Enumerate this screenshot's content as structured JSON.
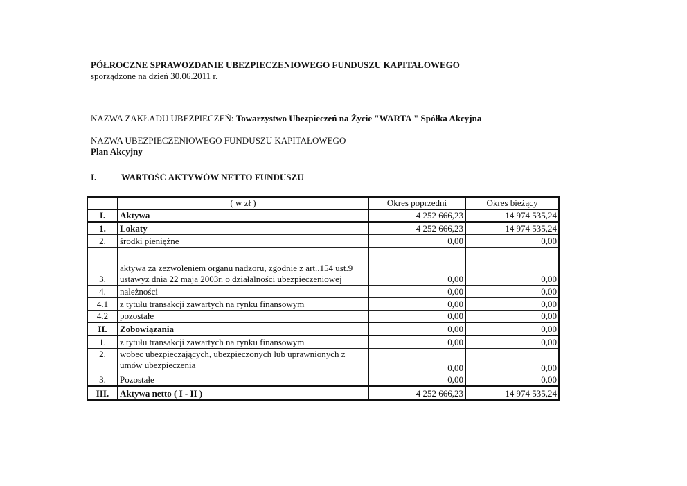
{
  "title": "PÓŁROCZNE SPRAWOZDANIE UBEZPIECZENIOWEGO FUNDUSZU KAPITAŁOWEGO",
  "subtitle": "sporządzone  na dzień 30.06.2011 r.",
  "insurer_label": "NAZWA ZAKŁADU UBEZPIECZEŃ: ",
  "insurer_name": "Towarzystwo Ubezpieczeń na Życie \"WARTA \" Spółka Akcyjna",
  "fund_label": "NAZWA UBEZPIECZENIOWEGO FUNDUSZU KAPITAŁOWEGO",
  "fund_name": "Plan Akcyjny",
  "section_number": "I.",
  "section_title": "WARTOŚĆ AKTYWÓW NETTO FUNDUSZU",
  "table": {
    "unit": "( w zł )",
    "col_prev": "Okres poprzedni",
    "col_curr": "Okres bieżący",
    "rows": [
      {
        "no": "I.",
        "label": "Aktywa",
        "prev": "4 252 666,23",
        "curr": "14 974 535,24"
      },
      {
        "no": "1.",
        "label": "Lokaty",
        "prev": "4 252 666,23",
        "curr": "14 974 535,24"
      },
      {
        "no": "2.",
        "label": "środki pieniężne",
        "prev": "0,00",
        "curr": "0,00"
      },
      {
        "no": "3.",
        "label": "aktywa za zezwoleniem organu nadzoru, zgodnie z art..154 ust.9 ustawyz dnia 22 maja 2003r. o działalności ubezpieczeniowej",
        "prev": "0,00",
        "curr": "0,00"
      },
      {
        "no": "4.",
        "label": "należności",
        "prev": "0,00",
        "curr": "0,00"
      },
      {
        "no": "4.1",
        "label": "z tytułu transakcji zawartych na rynku finansowym",
        "prev": "0,00",
        "curr": "0,00"
      },
      {
        "no": "4.2",
        "label": "pozostałe",
        "prev": "0,00",
        "curr": "0,00"
      },
      {
        "no": "II.",
        "label": "Zobowiązania",
        "prev": "0,00",
        "curr": "0,00"
      },
      {
        "no": "1.",
        "label": "z tytułu transakcji zawartych na rynku finansowym",
        "prev": "0,00",
        "curr": "0,00"
      },
      {
        "no": "2.",
        "label": "wobec ubezpieczających, ubezpieczonych lub uprawnionych z umów ubezpieczenia",
        "prev": "0,00",
        "curr": "0,00"
      },
      {
        "no": "3.",
        "label": "Pozostałe",
        "prev": "0,00",
        "curr": "0,00"
      },
      {
        "no": "III.",
        "label": "Aktywa netto ( I - II )",
        "prev": "4 252 666,23",
        "curr": "14 974 535,24"
      }
    ]
  }
}
